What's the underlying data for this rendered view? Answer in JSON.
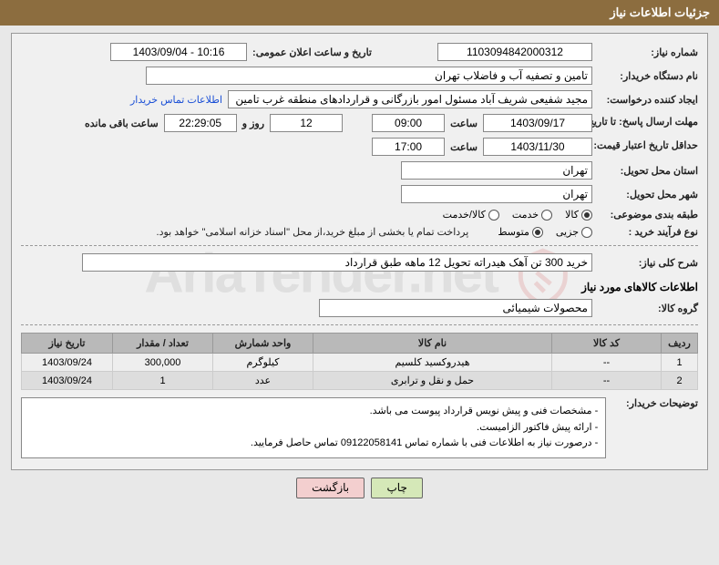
{
  "header": {
    "title": "جزئیات اطلاعات نیاز"
  },
  "fields": {
    "need_number_label": "شماره نیاز:",
    "need_number": "1103094842000312",
    "announce_datetime_label": "تاریخ و ساعت اعلان عمومی:",
    "announce_datetime": "1403/09/04 - 10:16",
    "org_name_label": "نام دستگاه خریدار:",
    "org_name": "تامین و تصفیه آب و فاضلاب تهران",
    "requester_label": "ایجاد کننده درخواست:",
    "requester": "مجید شفیعی شریف آباد مسئول امور بازرگانی و قراردادهای منطقه غرب تامین و",
    "buyer_contact_link": "اطلاعات تماس خریدار",
    "reply_deadline_label": "مهلت ارسال پاسخ: تا تاریخ:",
    "reply_deadline_date": "1403/09/17",
    "time_label": "ساعت",
    "reply_deadline_time": "09:00",
    "days_value": "12",
    "days_and": "روز و",
    "remaining_time": "22:29:05",
    "remaining_label": "ساعت باقی مانده",
    "validity_label": "حداقل تاریخ اعتبار قیمت: تا تاریخ:",
    "validity_date": "1403/11/30",
    "validity_time": "17:00",
    "province_label": "استان محل تحویل:",
    "province": "تهران",
    "city_label": "شهر محل تحویل:",
    "city": "تهران",
    "category_label": "طبقه بندی موضوعی:",
    "cat_goods": "کالا",
    "cat_service": "خدمت",
    "cat_goods_service": "کالا/خدمت",
    "process_type_label": "نوع فرآیند خرید :",
    "proc_small": "جزیی",
    "proc_medium": "متوسط",
    "payment_note": "پرداخت تمام یا بخشی از مبلغ خرید،از محل \"اسناد خزانه اسلامی\" خواهد بود.",
    "summary_label": "شرح کلی نیاز:",
    "summary": "خرید 300 تن آهک هیدراته تحویل 12 ماهه طبق قرارداد",
    "goods_info_title": "اطلاعات کالاهای مورد نیاز",
    "goods_group_label": "گروه کالا:",
    "goods_group": "محصولات شیمیائی",
    "buyer_notes_label": "توضیحات خریدار:",
    "buyer_notes_line1": "- مشخصات فنی و پیش نویس قرارداد پیوست می باشد.",
    "buyer_notes_line2": "- ارائه پیش فاکتور الزامیست.",
    "buyer_notes_line3": "- درصورت نیاز به اطلاعات فنی با شماره تماس 09122058141 تماس حاصل فرمایید."
  },
  "table": {
    "headers": {
      "row": "ردیف",
      "code": "کد کالا",
      "name": "نام کالا",
      "unit": "واحد شمارش",
      "qty": "تعداد / مقدار",
      "date": "تاریخ نیاز"
    },
    "rows": [
      {
        "idx": "1",
        "code": "--",
        "name": "هیدروکسید کلسیم",
        "unit": "کیلوگرم",
        "qty": "300,000",
        "date": "1403/09/24"
      },
      {
        "idx": "2",
        "code": "--",
        "name": "حمل و نقل و ترابری",
        "unit": "عدد",
        "qty": "1",
        "date": "1403/09/24"
      }
    ]
  },
  "buttons": {
    "print": "چاپ",
    "back": "بازگشت"
  },
  "colors": {
    "header_bg": "#8c6d3f",
    "table_header_bg": "#b9b9b9",
    "link": "#1a4fd6"
  },
  "col_widths": {
    "row": "40px",
    "code": "120px",
    "name": "auto",
    "unit": "110px",
    "qty": "110px",
    "date": "100px"
  }
}
